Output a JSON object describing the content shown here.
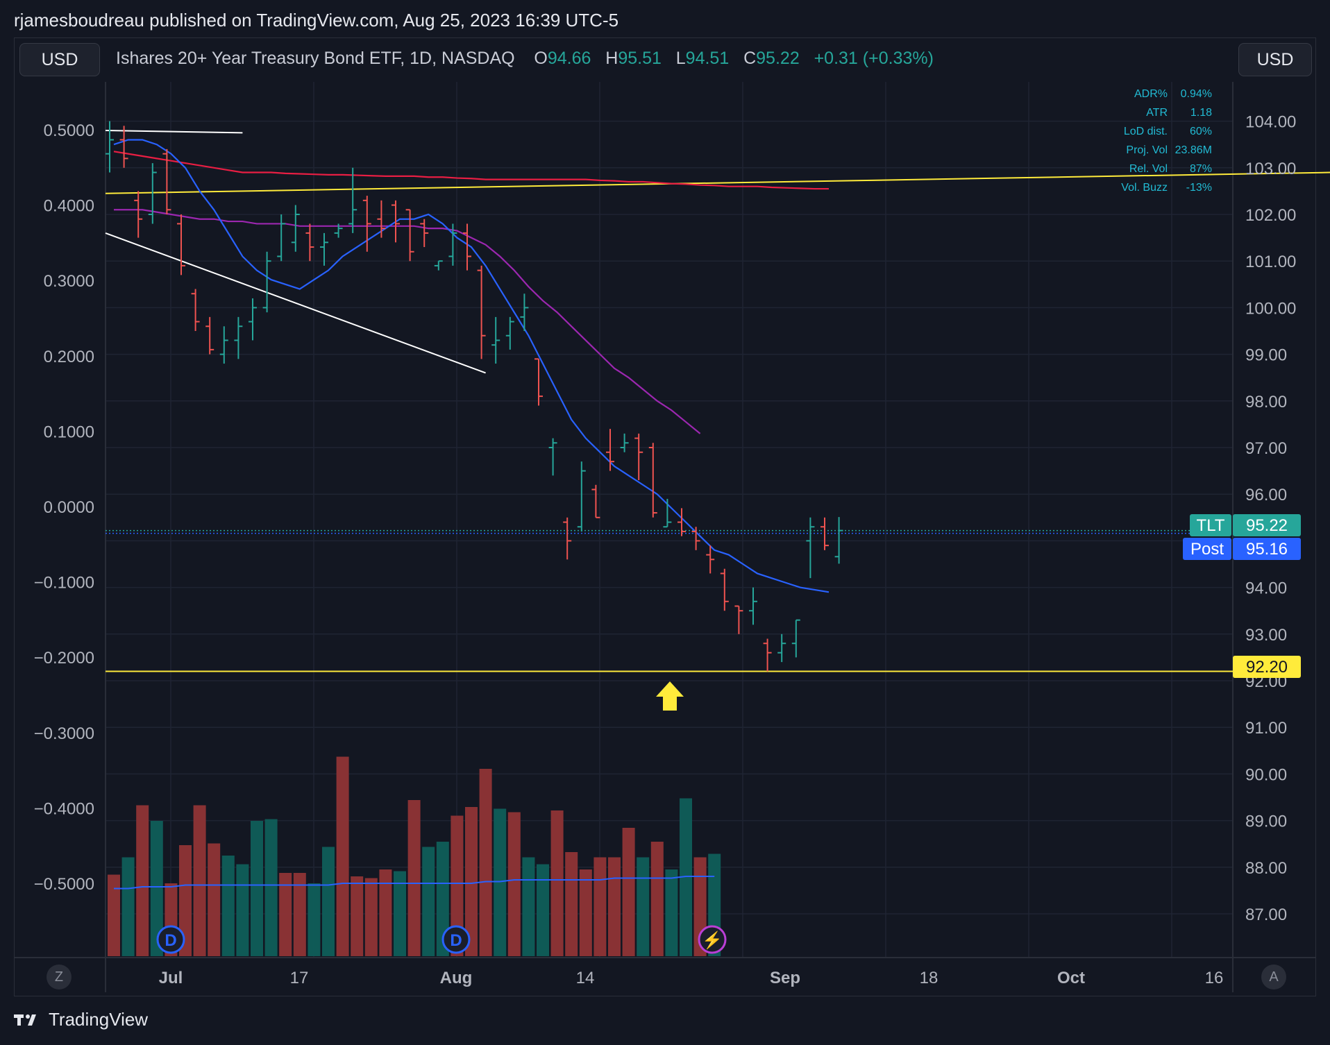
{
  "header": {
    "publish_line": "rjamesboudreau published on TradingView.com, Aug 25, 2023 16:39 UTC-5",
    "left_currency": "USD",
    "right_currency": "USD"
  },
  "legend": {
    "symbol": "Ishares 20+ Year Treasury Bond ETF, 1D, NASDAQ",
    "o_label": "O",
    "o": "94.66",
    "h_label": "H",
    "h": "95.51",
    "l_label": "L",
    "l": "94.51",
    "c_label": "C",
    "c": "95.22",
    "change": "+0.31 (+0.33%)"
  },
  "stats": [
    {
      "label": "ADR%",
      "value": "0.94%"
    },
    {
      "label": "ATR",
      "value": "1.18"
    },
    {
      "label": "LoD dist.",
      "value": "60%"
    },
    {
      "label": "Proj. Vol",
      "value": "23.86M"
    },
    {
      "label": "Rel. Vol",
      "value": "87%"
    },
    {
      "label": "Vol. Buzz",
      "value": "-13%"
    }
  ],
  "badges": {
    "tlt_label": "TLT",
    "tlt_value": "95.22",
    "post_label": "Post",
    "post_value": "95.16",
    "level_value": "92.20"
  },
  "event_markers": [
    "D",
    "D",
    "⚡"
  ],
  "corner_left": "Z",
  "corner_right": "A",
  "footer": {
    "brand": "TradingView"
  },
  "colors": {
    "up": "#26a69a",
    "down": "#ef5350",
    "ma_fast": "#2962ff",
    "ma_mid": "#9c27b0",
    "ma_slow": "#e91e43",
    "level": "#ffeb3b",
    "trend": "#ffffff",
    "bg": "#131722"
  },
  "chart_data": {
    "type": "ohlc",
    "right_axis": {
      "ticks": [
        "104.00",
        "103.00",
        "102.00",
        "101.00",
        "100.00",
        "99.00",
        "98.00",
        "97.00",
        "96.00",
        "94.00",
        "93.00",
        "92.00",
        "91.00",
        "90.00",
        "89.00",
        "88.00",
        "87.00"
      ],
      "range": [
        86.0,
        105.0
      ]
    },
    "left_axis": {
      "ticks": [
        "0.5000",
        "0.4000",
        "0.3000",
        "0.2000",
        "0.1000",
        "0.0000",
        "−0.1000",
        "−0.2000",
        "−0.3000",
        "−0.4000",
        "−0.5000"
      ]
    },
    "time_axis": [
      "Jul",
      "17",
      "Aug",
      "14",
      "Sep",
      "18",
      "Oct",
      "16"
    ],
    "bars": [
      {
        "o": 103.3,
        "h": 104.0,
        "l": 102.9,
        "c": 103.6
      },
      {
        "o": 103.6,
        "h": 103.9,
        "l": 103.0,
        "c": 103.2
      },
      {
        "o": 102.3,
        "h": 102.5,
        "l": 101.5,
        "c": 101.9
      },
      {
        "o": 102.0,
        "h": 103.1,
        "l": 101.8,
        "c": 102.9
      },
      {
        "o": 103.3,
        "h": 103.4,
        "l": 102.0,
        "c": 102.1
      },
      {
        "o": 101.8,
        "h": 102.0,
        "l": 100.7,
        "c": 100.9
      },
      {
        "o": 100.3,
        "h": 100.4,
        "l": 99.5,
        "c": 99.7
      },
      {
        "o": 99.6,
        "h": 99.8,
        "l": 99.0,
        "c": 99.1
      },
      {
        "o": 99.0,
        "h": 99.6,
        "l": 98.8,
        "c": 99.3
      },
      {
        "o": 99.3,
        "h": 99.8,
        "l": 98.9,
        "c": 99.6
      },
      {
        "o": 99.7,
        "h": 100.2,
        "l": 99.3,
        "c": 100.0
      },
      {
        "o": 100.0,
        "h": 101.2,
        "l": 99.9,
        "c": 101.0
      },
      {
        "o": 101.1,
        "h": 102.0,
        "l": 101.0,
        "c": 101.8
      },
      {
        "o": 101.4,
        "h": 102.2,
        "l": 101.2,
        "c": 102.0
      },
      {
        "o": 101.6,
        "h": 101.8,
        "l": 101.0,
        "c": 101.3
      },
      {
        "o": 101.3,
        "h": 101.6,
        "l": 100.9,
        "c": 101.4
      },
      {
        "o": 101.6,
        "h": 101.8,
        "l": 101.5,
        "c": 101.7
      },
      {
        "o": 101.8,
        "h": 103.0,
        "l": 101.6,
        "c": 102.1
      },
      {
        "o": 102.3,
        "h": 102.4,
        "l": 101.2,
        "c": 101.8
      },
      {
        "o": 101.9,
        "h": 102.3,
        "l": 101.5,
        "c": 101.7
      },
      {
        "o": 102.2,
        "h": 102.3,
        "l": 101.4,
        "c": 101.8
      },
      {
        "o": 102.1,
        "h": 102.1,
        "l": 101.0,
        "c": 101.2
      },
      {
        "o": 101.8,
        "h": 101.9,
        "l": 101.3,
        "c": 101.6
      },
      {
        "o": 100.9,
        "h": 101.0,
        "l": 100.8,
        "c": 101.0
      },
      {
        "o": 101.1,
        "h": 101.8,
        "l": 100.9,
        "c": 101.6
      },
      {
        "o": 101.6,
        "h": 101.8,
        "l": 100.8,
        "c": 101.1
      },
      {
        "o": 100.8,
        "h": 100.9,
        "l": 98.9,
        "c": 99.4
      },
      {
        "o": 99.2,
        "h": 99.8,
        "l": 98.8,
        "c": 99.3
      },
      {
        "o": 99.4,
        "h": 99.8,
        "l": 99.1,
        "c": 99.7
      },
      {
        "o": 99.8,
        "h": 100.3,
        "l": 99.5,
        "c": 100.0
      },
      {
        "o": 98.9,
        "h": 98.9,
        "l": 97.9,
        "c": 98.1
      },
      {
        "o": 97.0,
        "h": 97.2,
        "l": 96.4,
        "c": 97.1
      },
      {
        "o": 95.4,
        "h": 95.5,
        "l": 94.6,
        "c": 95.0
      },
      {
        "o": 95.3,
        "h": 96.7,
        "l": 95.2,
        "c": 96.5
      },
      {
        "o": 96.1,
        "h": 96.2,
        "l": 95.5,
        "c": 95.5
      },
      {
        "o": 96.9,
        "h": 97.4,
        "l": 96.5,
        "c": 96.7
      },
      {
        "o": 97.0,
        "h": 97.3,
        "l": 96.9,
        "c": 97.1
      },
      {
        "o": 97.2,
        "h": 97.3,
        "l": 96.3,
        "c": 96.9
      },
      {
        "o": 97.0,
        "h": 97.1,
        "l": 95.5,
        "c": 95.6
      },
      {
        "o": 95.3,
        "h": 95.9,
        "l": 95.3,
        "c": 95.4
      },
      {
        "o": 95.4,
        "h": 95.7,
        "l": 95.1,
        "c": 95.2
      },
      {
        "o": 95.2,
        "h": 95.3,
        "l": 94.8,
        "c": 95.0
      },
      {
        "o": 94.7,
        "h": 94.9,
        "l": 94.3,
        "c": 94.6
      },
      {
        "o": 94.3,
        "h": 94.4,
        "l": 93.5,
        "c": 93.7
      },
      {
        "o": 93.6,
        "h": 93.6,
        "l": 93.0,
        "c": 93.5
      },
      {
        "o": 93.5,
        "h": 94.0,
        "l": 93.2,
        "c": 93.7
      },
      {
        "o": 92.8,
        "h": 92.9,
        "l": 92.2,
        "c": 92.6
      },
      {
        "o": 92.6,
        "h": 93.0,
        "l": 92.4,
        "c": 92.8
      },
      {
        "o": 92.8,
        "h": 93.3,
        "l": 92.5,
        "c": 93.3
      },
      {
        "o": 95.0,
        "h": 95.5,
        "l": 94.2,
        "c": 95.3
      },
      {
        "o": 95.3,
        "h": 95.5,
        "l": 94.8,
        "c": 94.9
      },
      {
        "o": 94.66,
        "h": 95.51,
        "l": 94.51,
        "c": 95.22
      }
    ],
    "ma_fast": [
      103.5,
      103.6,
      103.6,
      103.5,
      103.3,
      103.0,
      102.5,
      102.1,
      101.6,
      101.1,
      100.8,
      100.6,
      100.5,
      100.4,
      100.6,
      100.8,
      101.1,
      101.3,
      101.5,
      101.7,
      101.9,
      101.9,
      102.0,
      101.8,
      101.5,
      101.3,
      100.9,
      100.4,
      99.9,
      99.4,
      98.8,
      98.2,
      97.6,
      97.2,
      96.9,
      96.6,
      96.4,
      96.2,
      96.0,
      95.7,
      95.4,
      95.1,
      94.8,
      94.7,
      94.5,
      94.3,
      94.2,
      94.1,
      94.0,
      93.95,
      93.9
    ],
    "ma_mid": [
      102.1,
      102.1,
      102.1,
      102.05,
      102.0,
      101.95,
      101.9,
      101.9,
      101.85,
      101.85,
      101.8,
      101.8,
      101.8,
      101.75,
      101.75,
      101.75,
      101.75,
      101.75,
      101.75,
      101.75,
      101.75,
      101.75,
      101.7,
      101.7,
      101.65,
      101.5,
      101.35,
      101.1,
      100.8,
      100.45,
      100.15,
      99.9,
      99.6,
      99.3,
      99.0,
      98.7,
      98.5,
      98.25,
      98.0,
      97.8,
      97.55,
      97.3
    ],
    "ma_slow": [
      103.35,
      103.3,
      103.25,
      103.2,
      103.15,
      103.1,
      103.05,
      103.0,
      102.95,
      102.9,
      102.9,
      102.9,
      102.88,
      102.87,
      102.86,
      102.85,
      102.85,
      102.84,
      102.83,
      102.82,
      102.82,
      102.82,
      102.8,
      102.8,
      102.78,
      102.77,
      102.75,
      102.75,
      102.75,
      102.75,
      102.75,
      102.75,
      102.75,
      102.75,
      102.73,
      102.72,
      102.7,
      102.7,
      102.68,
      102.66,
      102.65,
      102.63,
      102.62,
      102.6,
      102.6,
      102.6,
      102.58,
      102.57,
      102.56,
      102.55,
      102.55
    ],
    "volume": [
      {
        "v": 0.47,
        "up": false
      },
      {
        "v": 0.57,
        "up": true
      },
      {
        "v": 0.87,
        "up": false
      },
      {
        "v": 0.78,
        "up": true
      },
      {
        "v": 0.42,
        "up": false
      },
      {
        "v": 0.64,
        "up": false
      },
      {
        "v": 0.87,
        "up": false
      },
      {
        "v": 0.65,
        "up": false
      },
      {
        "v": 0.58,
        "up": true
      },
      {
        "v": 0.53,
        "up": true
      },
      {
        "v": 0.78,
        "up": true
      },
      {
        "v": 0.79,
        "up": true
      },
      {
        "v": 0.48,
        "up": false
      },
      {
        "v": 0.48,
        "up": false
      },
      {
        "v": 0.42,
        "up": true
      },
      {
        "v": 0.63,
        "up": true
      },
      {
        "v": 1.15,
        "up": false
      },
      {
        "v": 0.46,
        "up": false
      },
      {
        "v": 0.45,
        "up": false
      },
      {
        "v": 0.5,
        "up": false
      },
      {
        "v": 0.49,
        "up": true
      },
      {
        "v": 0.9,
        "up": false
      },
      {
        "v": 0.63,
        "up": true
      },
      {
        "v": 0.66,
        "up": true
      },
      {
        "v": 0.81,
        "up": false
      },
      {
        "v": 0.86,
        "up": false
      },
      {
        "v": 1.08,
        "up": false
      },
      {
        "v": 0.85,
        "up": true
      },
      {
        "v": 0.83,
        "up": false
      },
      {
        "v": 0.57,
        "up": true
      },
      {
        "v": 0.53,
        "up": true
      },
      {
        "v": 0.84,
        "up": false
      },
      {
        "v": 0.6,
        "up": false
      },
      {
        "v": 0.5,
        "up": false
      },
      {
        "v": 0.57,
        "up": false
      },
      {
        "v": 0.57,
        "up": false
      },
      {
        "v": 0.74,
        "up": false
      },
      {
        "v": 0.57,
        "up": true
      },
      {
        "v": 0.66,
        "up": false
      },
      {
        "v": 0.5,
        "up": true
      },
      {
        "v": 0.91,
        "up": true
      },
      {
        "v": 0.57,
        "up": false
      },
      {
        "v": 0.59,
        "up": true
      }
    ],
    "volume_ma": [
      0.39,
      0.39,
      0.4,
      0.4,
      0.4,
      0.41,
      0.41,
      0.41,
      0.41,
      0.41,
      0.41,
      0.41,
      0.41,
      0.41,
      0.41,
      0.41,
      0.42,
      0.42,
      0.42,
      0.42,
      0.42,
      0.42,
      0.42,
      0.42,
      0.42,
      0.42,
      0.43,
      0.43,
      0.44,
      0.44,
      0.44,
      0.44,
      0.44,
      0.44,
      0.44,
      0.45,
      0.45,
      0.45,
      0.45,
      0.45,
      0.46,
      0.46,
      0.46
    ],
    "levels": [
      {
        "type": "support",
        "value": 92.2
      },
      {
        "type": "resistance",
        "from": 102.45,
        "to": 102.9
      }
    ],
    "trendlines": [
      {
        "from_bar": 0,
        "from": 101.6,
        "to_bar": 26,
        "to": 98.6
      },
      {
        "from_bar": 0,
        "from": 103.8,
        "to_bar": 9,
        "to": 103.75
      }
    ]
  }
}
